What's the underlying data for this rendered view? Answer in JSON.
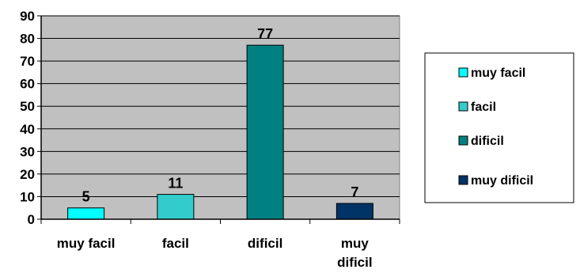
{
  "chart_data": {
    "type": "bar",
    "title": "",
    "xlabel": "",
    "ylabel": "",
    "categories": [
      "muy facil",
      "facil",
      "dificil",
      "muy dificil"
    ],
    "category_label_lines": [
      [
        "muy facil"
      ],
      [
        "facil"
      ],
      [
        "dificil"
      ],
      [
        "muy",
        "dificil"
      ]
    ],
    "values": [
      5,
      11,
      77,
      7
    ],
    "value_labels": [
      "5",
      "11",
      "77",
      "7"
    ],
    "colors": [
      "#00FFFF",
      "#33CCCC",
      "#008080",
      "#003366"
    ],
    "ylim": [
      0,
      90
    ],
    "yticks": [
      0,
      10,
      20,
      30,
      40,
      50,
      60,
      70,
      80,
      90
    ],
    "grid": true,
    "plot_background": "#C0C0C0",
    "legend": {
      "position": "right",
      "entries": [
        "muy facil",
        "facil",
        "dificil",
        "muy dificil"
      ]
    }
  }
}
